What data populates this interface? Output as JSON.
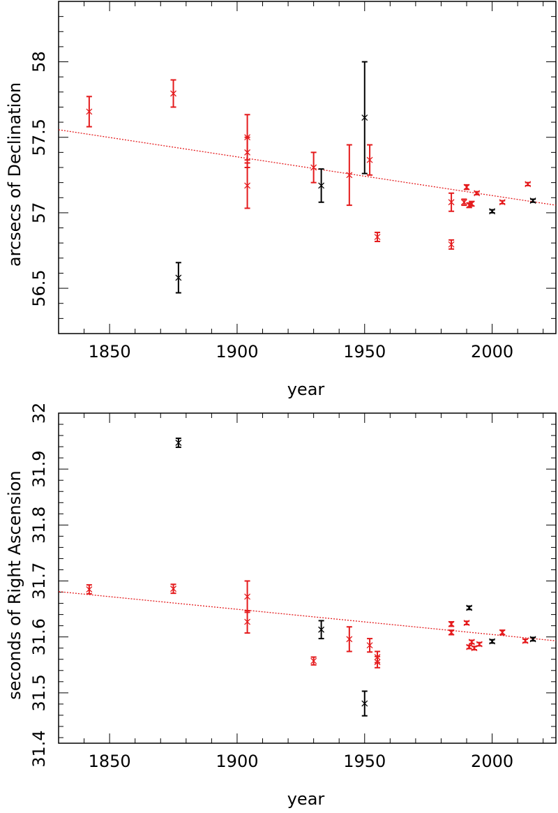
{
  "chart_data": [
    {
      "type": "scatter",
      "xlabel": "year",
      "ylabel": "arcsecs of Declination",
      "xlim": [
        1830,
        2025
      ],
      "ylim": [
        56.2,
        58.4
      ],
      "xticks": [
        1850,
        1900,
        1950,
        2000
      ],
      "yticks": [
        56.5,
        57,
        57.5,
        58
      ],
      "ytick_labels": [
        "56.5",
        "57",
        "57.5",
        "58"
      ],
      "xtick_labels": [
        "1850",
        "1900",
        "1950",
        "2000"
      ],
      "minor_xtick_step": 10,
      "minor_ytick_step": 0.1,
      "grid": false,
      "fit_line": {
        "color": "#e41a1c",
        "style": "dotted",
        "x": [
          1830,
          2025
        ],
        "y": [
          57.55,
          57.05
        ]
      },
      "series": [
        {
          "color": "#e41a1c",
          "points": [
            {
              "x": 1842,
              "y": 57.67,
              "err": 0.1
            },
            {
              "x": 1875,
              "y": 57.79,
              "err": 0.09
            },
            {
              "x": 1904,
              "y": 57.5,
              "err": 0.15
            },
            {
              "x": 1904,
              "y": 57.4,
              "err": 0.1
            },
            {
              "x": 1904,
              "y": 57.18,
              "err": 0.15
            },
            {
              "x": 1930,
              "y": 57.3,
              "err": 0.1
            },
            {
              "x": 1944,
              "y": 57.25,
              "err": 0.2
            },
            {
              "x": 1952,
              "y": 57.35,
              "err": 0.1
            },
            {
              "x": 1955,
              "y": 56.84,
              "err": 0.03
            },
            {
              "x": 1984,
              "y": 57.07,
              "err": 0.06
            },
            {
              "x": 1984,
              "y": 56.79,
              "err": 0.03
            },
            {
              "x": 1989,
              "y": 57.07,
              "err": 0.02
            },
            {
              "x": 1990,
              "y": 57.17,
              "err": 0.015
            },
            {
              "x": 1991,
              "y": 57.05,
              "err": 0.015
            },
            {
              "x": 1992,
              "y": 57.06,
              "err": 0.015
            },
            {
              "x": 1994,
              "y": 57.13,
              "err": 0.01
            },
            {
              "x": 2004,
              "y": 57.07,
              "err": 0.01
            },
            {
              "x": 2014,
              "y": 57.19,
              "err": 0.01
            }
          ]
        },
        {
          "color": "#000000",
          "points": [
            {
              "x": 1877,
              "y": 56.57,
              "err": 0.1
            },
            {
              "x": 1933,
              "y": 57.18,
              "err": 0.11
            },
            {
              "x": 1950,
              "y": 57.63,
              "err": 0.37
            },
            {
              "x": 2000,
              "y": 57.01,
              "err": 0.01
            },
            {
              "x": 2016,
              "y": 57.08,
              "err": 0.01
            }
          ]
        }
      ]
    },
    {
      "type": "scatter",
      "xlabel": "year",
      "ylabel": "seconds of Right Ascension",
      "xlim": [
        1830,
        2025
      ],
      "ylim": [
        31.41,
        32.0
      ],
      "xticks": [
        1850,
        1900,
        1950,
        2000
      ],
      "yticks": [
        31.4,
        31.5,
        31.6,
        31.7,
        31.8,
        31.9,
        32.0
      ],
      "ytick_labels": [
        "31.4",
        "31.5",
        "31.6",
        "31.7",
        "31.8",
        "31.9",
        "32"
      ],
      "xtick_labels": [
        "1850",
        "1900",
        "1950",
        "2000"
      ],
      "minor_xtick_step": 10,
      "minor_ytick_step": 0.02,
      "grid": false,
      "fit_line": {
        "color": "#e41a1c",
        "style": "dotted",
        "x": [
          1830,
          2025
        ],
        "y": [
          31.681,
          31.593
        ]
      },
      "series": [
        {
          "color": "#e41a1c",
          "points": [
            {
              "x": 1842,
              "y": 31.685,
              "err": 0.008
            },
            {
              "x": 1875,
              "y": 31.686,
              "err": 0.008
            },
            {
              "x": 1904,
              "y": 31.672,
              "err": 0.028
            },
            {
              "x": 1904,
              "y": 31.627,
              "err": 0.02
            },
            {
              "x": 1930,
              "y": 31.557,
              "err": 0.007
            },
            {
              "x": 1944,
              "y": 31.596,
              "err": 0.022
            },
            {
              "x": 1952,
              "y": 31.585,
              "err": 0.012
            },
            {
              "x": 1955,
              "y": 31.564,
              "err": 0.01
            },
            {
              "x": 1955,
              "y": 31.555,
              "err": 0.01
            },
            {
              "x": 1984,
              "y": 31.623,
              "err": 0.004
            },
            {
              "x": 1984,
              "y": 31.608,
              "err": 0.004
            },
            {
              "x": 1990,
              "y": 31.625,
              "err": 0.003
            },
            {
              "x": 1991,
              "y": 31.582,
              "err": 0.003
            },
            {
              "x": 1992,
              "y": 31.591,
              "err": 0.003
            },
            {
              "x": 1993,
              "y": 31.58,
              "err": 0.003
            },
            {
              "x": 1995,
              "y": 31.587,
              "err": 0.003
            },
            {
              "x": 2004,
              "y": 31.608,
              "err": 0.004
            },
            {
              "x": 2013,
              "y": 31.593,
              "err": 0.003
            }
          ]
        },
        {
          "color": "#000000",
          "points": [
            {
              "x": 1877,
              "y": 31.947,
              "err": 0.008
            },
            {
              "x": 1933,
              "y": 31.613,
              "err": 0.016
            },
            {
              "x": 1950,
              "y": 31.481,
              "err": 0.022
            },
            {
              "x": 1991,
              "y": 31.652,
              "err": 0.003
            },
            {
              "x": 2000,
              "y": 31.592,
              "err": 0.003
            },
            {
              "x": 2016,
              "y": 31.596,
              "err": 0.003
            }
          ]
        }
      ]
    }
  ]
}
